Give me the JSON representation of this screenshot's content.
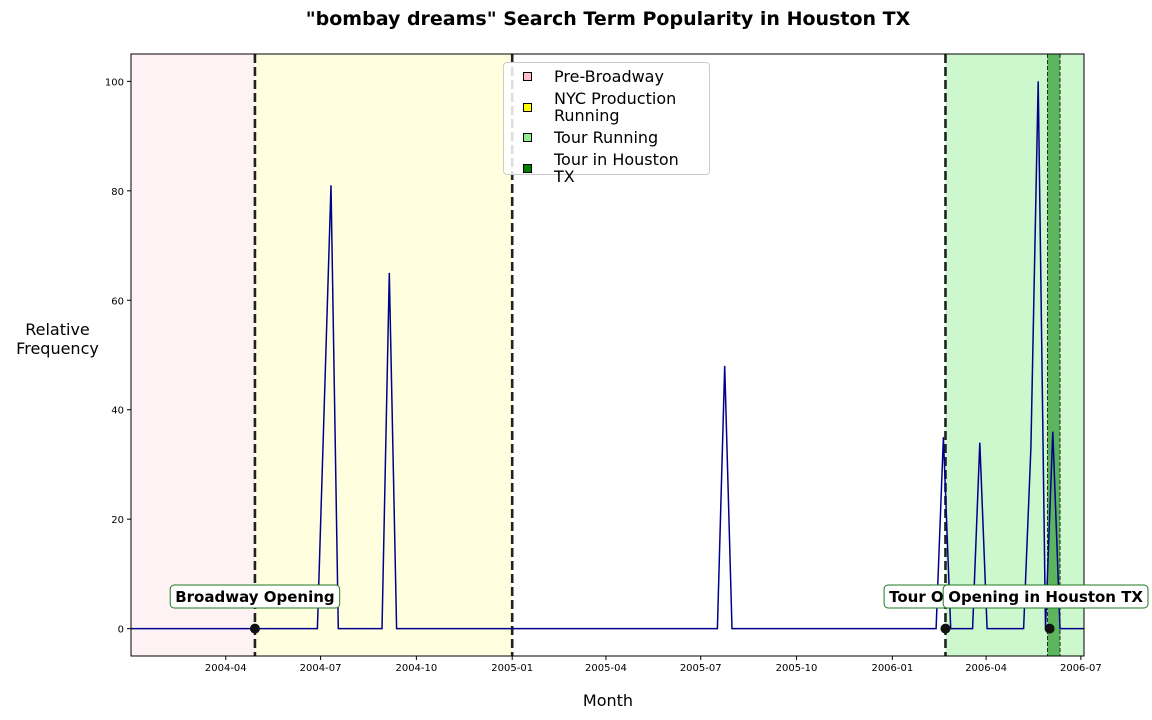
{
  "chart_data": {
    "type": "line",
    "title": "\"bombay dreams\" Search Term Popularity in Houston TX",
    "xlabel": "Month",
    "ylabel_lines": [
      "Relative",
      "Frequency"
    ],
    "x_range": [
      "2004-01-01",
      "2006-07-04"
    ],
    "ylim": [
      -5,
      105
    ],
    "y_ticks": [
      0,
      20,
      40,
      60,
      80,
      100
    ],
    "x_ticks": [
      "2004-04",
      "2004-07",
      "2004-10",
      "2005-01",
      "2005-04",
      "2005-07",
      "2005-10",
      "2006-01",
      "2006-04",
      "2006-07"
    ],
    "grid": false,
    "legend_position": "top-center",
    "series": [
      {
        "color": "#00008b",
        "points": [
          [
            "2004-01-01",
            0
          ],
          [
            "2004-06-28",
            0
          ],
          [
            "2004-07-11",
            81
          ],
          [
            "2004-07-18",
            0
          ],
          [
            "2004-08-29",
            0
          ],
          [
            "2004-09-05",
            65
          ],
          [
            "2004-09-12",
            0
          ],
          [
            "2005-07-17",
            0
          ],
          [
            "2005-07-24",
            48
          ],
          [
            "2005-07-31",
            0
          ],
          [
            "2006-02-12",
            0
          ],
          [
            "2006-02-19",
            35
          ],
          [
            "2006-02-26",
            0
          ],
          [
            "2006-03-19",
            0
          ],
          [
            "2006-03-26",
            34
          ],
          [
            "2006-04-02",
            0
          ],
          [
            "2006-05-07",
            0
          ],
          [
            "2006-05-14",
            33
          ],
          [
            "2006-05-21",
            100
          ],
          [
            "2006-05-28",
            0
          ],
          [
            "2006-06-04",
            36
          ],
          [
            "2006-06-11",
            0
          ],
          [
            "2006-07-04",
            0
          ]
        ]
      }
    ],
    "shaded_regions": [
      {
        "label": "Pre-Broadway",
        "start": "2004-01-01",
        "end": "2004-04-29",
        "color": "#ffc0cb",
        "opacity": 0.2
      },
      {
        "label": "NYC Production Running",
        "start": "2004-04-29",
        "end": "2005-01-01",
        "color": "#ffff00",
        "opacity": 0.12
      },
      {
        "label": "Tour Running",
        "start": "2006-02-21",
        "end": "2006-07-04",
        "color": "#90ee90",
        "opacity": 0.45
      },
      {
        "label": "Tour in Houston TX",
        "start": "2006-05-30",
        "end": "2006-06-11",
        "color": "#008000",
        "opacity": 0.55
      }
    ],
    "vlines": [
      "2004-04-29",
      "2005-01-01",
      "2006-02-21"
    ],
    "houston_edges": [
      "2006-05-30",
      "2006-06-11"
    ],
    "annotations": [
      {
        "text": "Broadway Opening",
        "date": "2004-04-29",
        "value": 0
      },
      {
        "text": "Tour Opening",
        "date": "2006-02-21",
        "value": 0
      },
      {
        "text": "Opening in Houston TX",
        "date": "2006-06-01",
        "value": 0
      }
    ],
    "legend": [
      {
        "label_lines": [
          "Pre-Broadway"
        ],
        "color": "#ffc0cb"
      },
      {
        "label_lines": [
          "NYC Production",
          "Running"
        ],
        "color": "#ffff00"
      },
      {
        "label_lines": [
          "Tour Running"
        ],
        "color": "#90ee90"
      },
      {
        "label_lines": [
          "Tour in Houston TX"
        ],
        "color": "#008000"
      }
    ]
  }
}
